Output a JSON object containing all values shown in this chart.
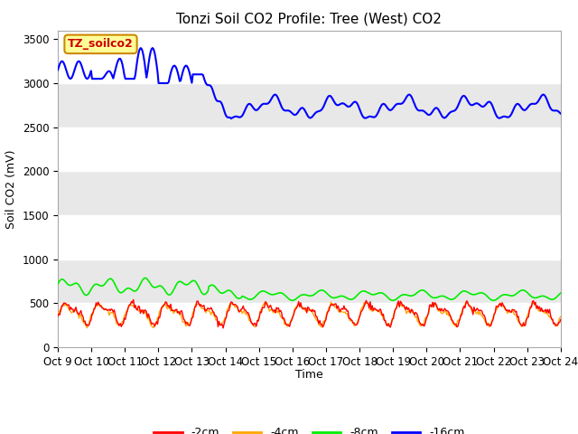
{
  "title": "Tonzi Soil CO2 Profile: Tree (West) CO2",
  "ylabel": "Soil CO2 (mV)",
  "xlabel": "Time",
  "xtick_labels": [
    "Oct 9",
    "Oct 10",
    "Oct 11",
    "Oct 12",
    "Oct 13",
    "Oct 14",
    "Oct 15",
    "Oct 16",
    "Oct 17",
    "Oct 18",
    "Oct 19",
    "Oct 20",
    "Oct 21",
    "Oct 22",
    "Oct 23",
    "Oct 24"
  ],
  "ylim": [
    0,
    3600
  ],
  "yticks": [
    0,
    500,
    1000,
    1500,
    2000,
    2500,
    3000,
    3500
  ],
  "colors": {
    "2cm": "#ff0000",
    "4cm": "#ffa500",
    "8cm": "#00ee00",
    "16cm": "#0000ff"
  },
  "legend_labels": [
    "-2cm",
    "-4cm",
    "-8cm",
    "-16cm"
  ],
  "bg_color_light": "#f0f0f0",
  "bg_color_dark": "#d8d8d8",
  "annotation_box": {
    "text": "TZ_soilco2",
    "bg": "#ffff99",
    "border": "#cc8800"
  },
  "n_points": 500
}
